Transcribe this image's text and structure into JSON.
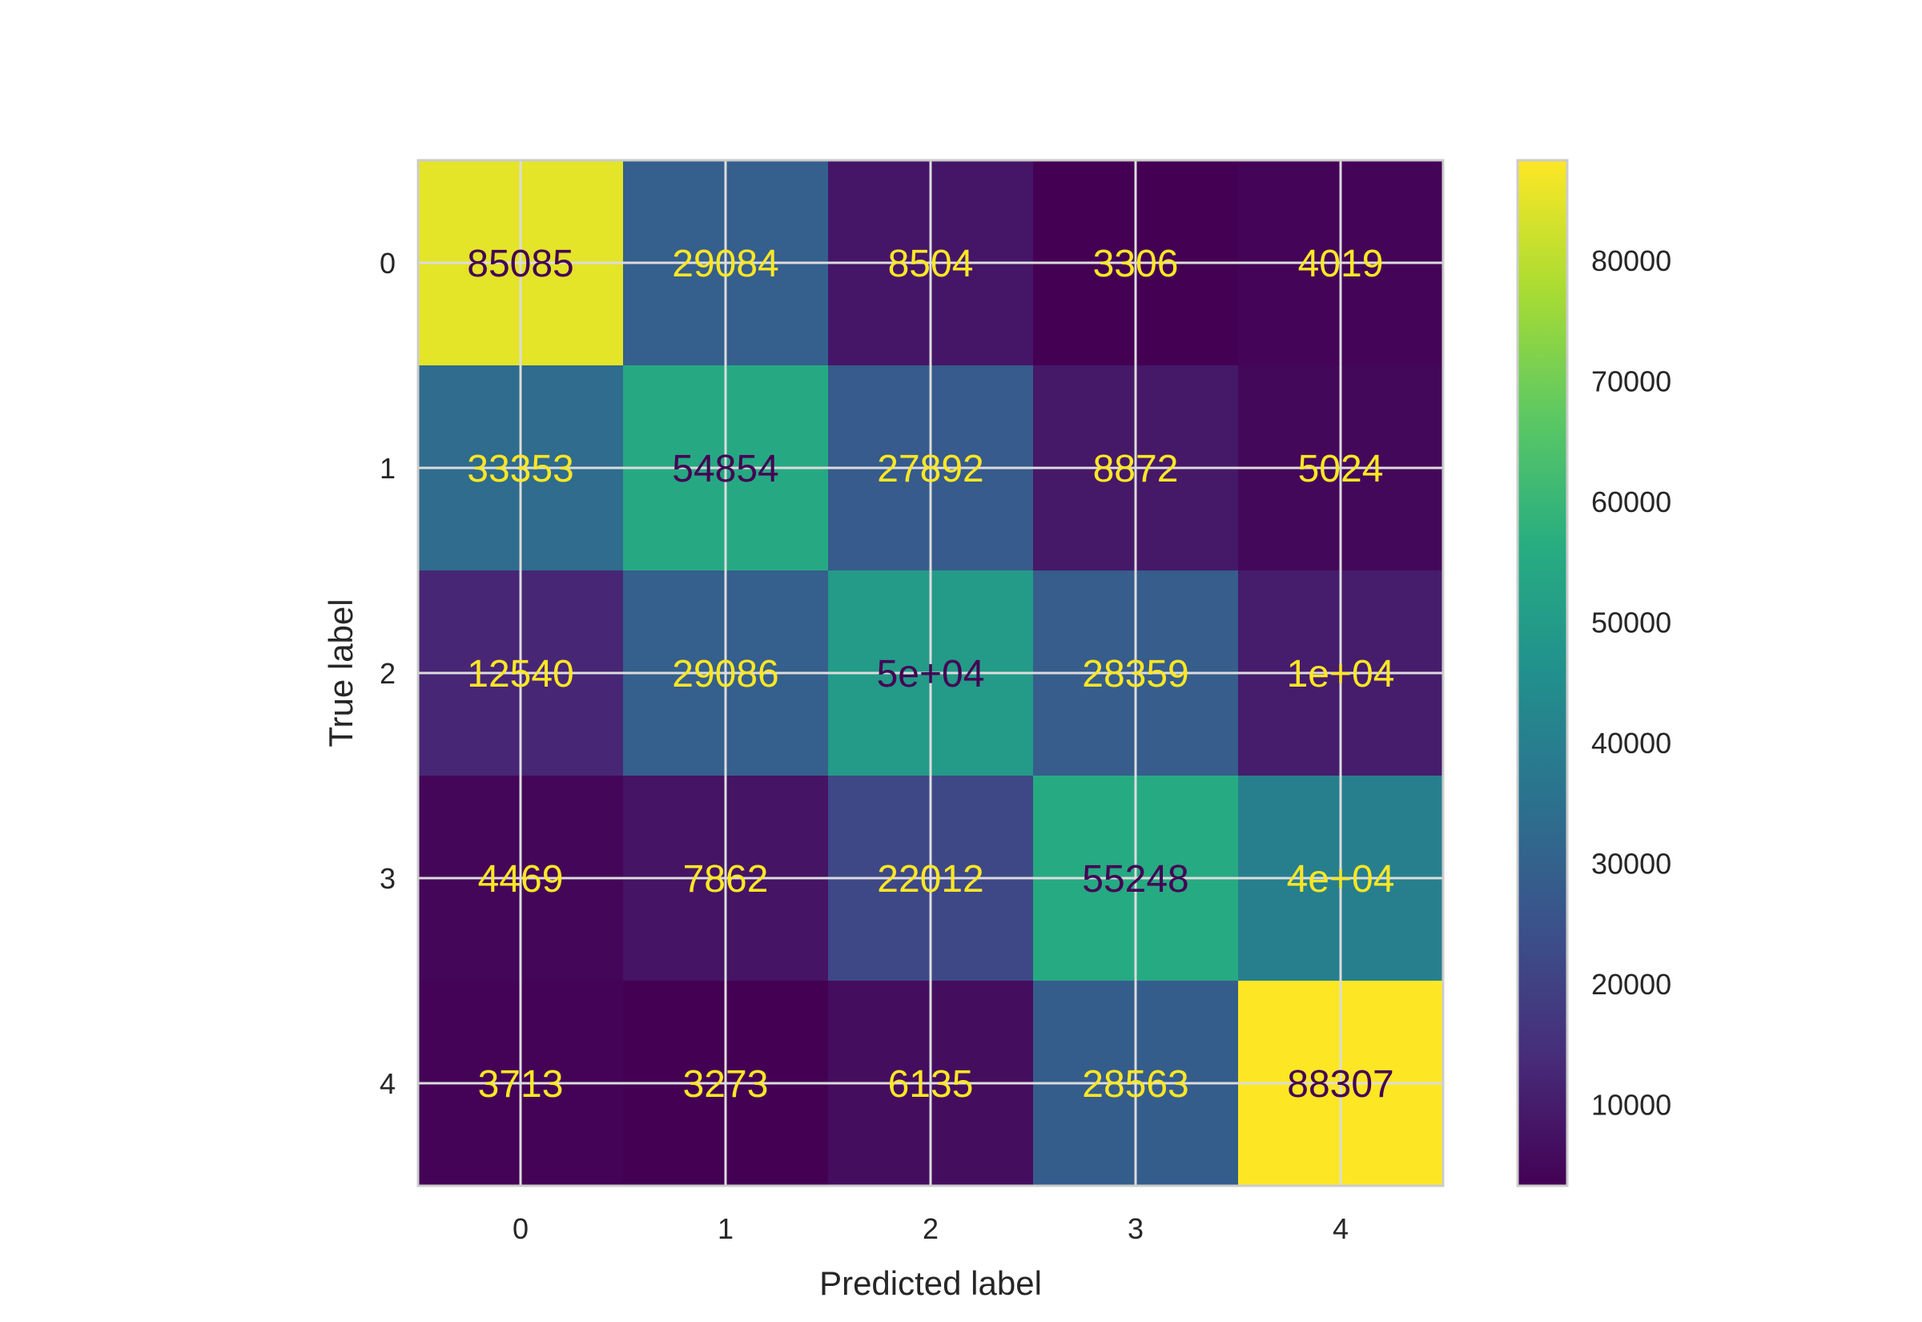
{
  "chart_data": {
    "type": "heatmap",
    "title": "",
    "xlabel": "Predicted label",
    "ylabel": "True label",
    "x_categories": [
      "0",
      "1",
      "2",
      "3",
      "4"
    ],
    "y_categories": [
      "0",
      "1",
      "2",
      "3",
      "4"
    ],
    "values": [
      [
        85085,
        29084,
        8504,
        3306,
        4019
      ],
      [
        33353,
        54854,
        27892,
        8872,
        5024
      ],
      [
        12540,
        29086,
        50000,
        28359,
        10000
      ],
      [
        4469,
        7862,
        22012,
        55248,
        40000
      ],
      [
        3713,
        3273,
        6135,
        28563,
        88307
      ]
    ],
    "cell_labels": [
      [
        "85085",
        "29084",
        "8504",
        "3306",
        "4019"
      ],
      [
        "33353",
        "54854",
        "27892",
        "8872",
        "5024"
      ],
      [
        "12540",
        "29086",
        "5e+04",
        "28359",
        "1e+04"
      ],
      [
        "4469",
        "7862",
        "22012",
        "55248",
        "4e+04"
      ],
      [
        "3713",
        "3273",
        "6135",
        "28563",
        "88307"
      ]
    ],
    "colormap": "viridis",
    "colorbar": {
      "vmin": 3273,
      "vmax": 88307,
      "ticks": [
        10000,
        20000,
        30000,
        40000,
        50000,
        60000,
        70000,
        80000
      ],
      "tick_labels": [
        "10000",
        "20000",
        "30000",
        "40000",
        "50000",
        "60000",
        "70000",
        "80000"
      ]
    },
    "grid": true,
    "colors": {
      "text_on_dark": "#fde725",
      "text_on_light": "#440154",
      "grid": "#dcdcdc",
      "frame": "#cccccc"
    }
  }
}
